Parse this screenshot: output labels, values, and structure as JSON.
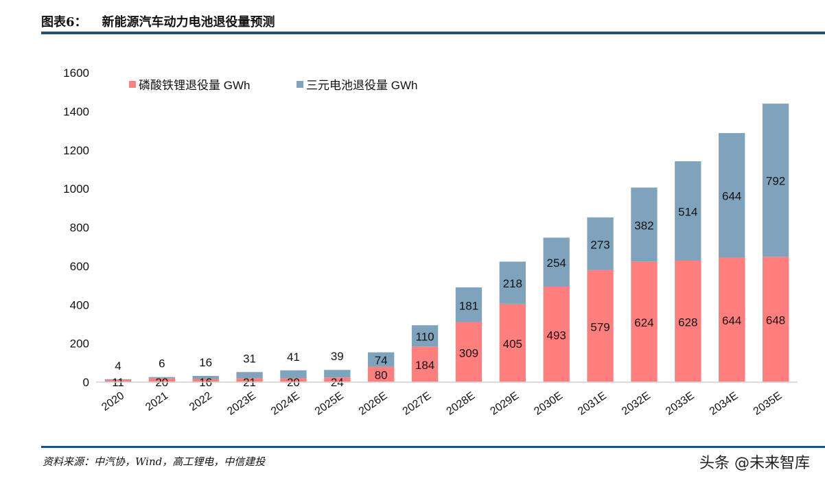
{
  "header": {
    "figure_no": "图表6：",
    "title": "新能源汽车动力电池退役量预测"
  },
  "footer": {
    "source": "资料来源：中汽协，Wind，高工锂电，中信建投",
    "watermark": "头条 @未来智库"
  },
  "chart_data": {
    "type": "bar",
    "stacked": true,
    "title": "",
    "xlabel": "",
    "ylabel": "",
    "ylim": [
      0,
      1600
    ],
    "yticks": [
      0,
      200,
      400,
      600,
      800,
      1000,
      1200,
      1400,
      1600
    ],
    "grid": false,
    "legend_position": "top-left",
    "categories": [
      "2020",
      "2021",
      "2022",
      "2023E",
      "2024E",
      "2025E",
      "2026E",
      "2027E",
      "2028E",
      "2029E",
      "2030E",
      "2031E",
      "2032E",
      "2033E",
      "2034E",
      "2035E"
    ],
    "series": [
      {
        "name": "磷酸铁锂退役量 GWh",
        "color": "#ff7f7f",
        "values": [
          11,
          20,
          16,
          21,
          20,
          24,
          80,
          184,
          309,
          405,
          493,
          579,
          624,
          628,
          644,
          648
        ]
      },
      {
        "name": "三元电池退役量 GWh",
        "color": "#7fa3bd",
        "values": [
          4,
          6,
          16,
          31,
          41,
          39,
          74,
          110,
          181,
          218,
          254,
          273,
          382,
          514,
          644,
          792
        ]
      }
    ]
  }
}
